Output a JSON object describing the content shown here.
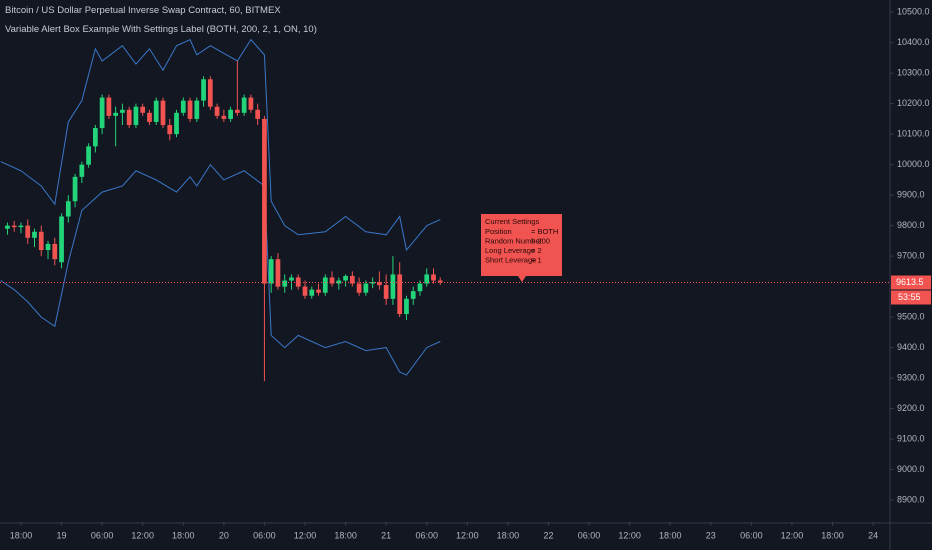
{
  "chart_data": {
    "type": "candlestick",
    "title": "Bitcoin / US Dollar Perpetual Inverse Swap Contract, 60, BITMEX",
    "subtitle": "Variable Alert Box Example With Settings Label (BOTH, 200, 2, 1, ON, 10)",
    "up_color": "#22d47a",
    "down_color": "#f05350",
    "grid": false,
    "xlim": [
      -9.1,
      122.5
    ],
    "ylim": [
      8828,
      10540
    ],
    "yticks": [
      {
        "value": 8900,
        "label": "8900.0"
      },
      {
        "value": 9000,
        "label": "9000.0"
      },
      {
        "value": 9100,
        "label": "9100.0"
      },
      {
        "value": 9200,
        "label": "9200.0"
      },
      {
        "value": 9300,
        "label": "9300.0"
      },
      {
        "value": 9400,
        "label": "9400.0"
      },
      {
        "value": 9500,
        "label": "9500.0"
      },
      {
        "value": 9600,
        "label": "9600.0"
      },
      {
        "value": 9700,
        "label": "9700.0"
      },
      {
        "value": 9800,
        "label": "9800.0"
      },
      {
        "value": 9900,
        "label": "9900.0"
      },
      {
        "value": 10000,
        "label": "10000.0"
      },
      {
        "value": 10100,
        "label": "10100.0"
      },
      {
        "value": 10200,
        "label": "10200.0"
      },
      {
        "value": 10300,
        "label": "10300.0"
      },
      {
        "value": 10400,
        "label": "10400.0"
      },
      {
        "value": 10500,
        "label": "10500.0"
      }
    ],
    "xticks": [
      {
        "value": -6,
        "label": "18:00"
      },
      {
        "value": 0,
        "label": "19"
      },
      {
        "value": 6,
        "label": "06:00"
      },
      {
        "value": 12,
        "label": "12:00"
      },
      {
        "value": 18,
        "label": "18:00"
      },
      {
        "value": 24,
        "label": "20"
      },
      {
        "value": 30,
        "label": "06:00"
      },
      {
        "value": 36,
        "label": "12:00"
      },
      {
        "value": 42,
        "label": "18:00"
      },
      {
        "value": 48,
        "label": "21"
      },
      {
        "value": 54,
        "label": "06:00"
      },
      {
        "value": 60,
        "label": "12:00"
      },
      {
        "value": 66,
        "label": "18:00"
      },
      {
        "value": 72,
        "label": "22"
      },
      {
        "value": 78,
        "label": "06:00"
      },
      {
        "value": 84,
        "label": "12:00"
      },
      {
        "value": 90,
        "label": "18:00"
      },
      {
        "value": 96,
        "label": "23"
      },
      {
        "value": 102,
        "label": "06:00"
      },
      {
        "value": 108,
        "label": "12:00"
      },
      {
        "value": 114,
        "label": "18:00"
      },
      {
        "value": 120,
        "label": "24"
      }
    ],
    "x": [
      -8,
      -7,
      -6,
      -5,
      -4,
      -3,
      -2,
      -1,
      0,
      1,
      2,
      3,
      4,
      5,
      6,
      7,
      8,
      9,
      10,
      11,
      12,
      13,
      14,
      15,
      16,
      17,
      18,
      19,
      20,
      21,
      22,
      23,
      24,
      25,
      26,
      27,
      28,
      29,
      30,
      31,
      32,
      33,
      34,
      35,
      36,
      37,
      38,
      39,
      40,
      41,
      42,
      43,
      44,
      45,
      46,
      47,
      48,
      49,
      50,
      51,
      52,
      53,
      54,
      55,
      56
    ],
    "open": [
      9790,
      9800,
      9795,
      9800,
      9760,
      9780,
      9720,
      9740,
      9680,
      9830,
      9880,
      9960,
      10000,
      10060,
      10120,
      10220,
      10160,
      10170,
      10180,
      10130,
      10190,
      10170,
      10140,
      10210,
      10130,
      10100,
      10170,
      10210,
      10150,
      10210,
      10280,
      10190,
      10160,
      10150,
      10180,
      10170,
      10220,
      10180,
      10150,
      9610,
      9690,
      9600,
      9620,
      9630,
      9600,
      9570,
      9590,
      9580,
      9630,
      9610,
      9620,
      9635,
      9610,
      9580,
      9610,
      9615,
      9605,
      9560,
      9640,
      9510,
      9560,
      9585,
      9610,
      9640,
      9620
    ],
    "high": [
      9810,
      9815,
      9810,
      9820,
      9790,
      9800,
      9750,
      9760,
      9840,
      9900,
      9970,
      10010,
      10070,
      10130,
      10230,
      10230,
      10190,
      10200,
      10190,
      10200,
      10200,
      10180,
      10220,
      10220,
      10150,
      10180,
      10220,
      10220,
      10220,
      10290,
      10290,
      10200,
      10180,
      10190,
      10340,
      10230,
      10230,
      10200,
      10160,
      9700,
      9710,
      9640,
      9640,
      9640,
      9620,
      9600,
      9610,
      9640,
      9650,
      9630,
      9640,
      9650,
      9630,
      9620,
      9630,
      9650,
      9640,
      9700,
      9680,
      9570,
      9600,
      9620,
      9660,
      9660,
      9630
    ],
    "low": [
      9770,
      9780,
      9775,
      9740,
      9730,
      9700,
      9690,
      9670,
      9660,
      9810,
      9860,
      9940,
      9990,
      10040,
      10100,
      10150,
      10060,
      10130,
      10120,
      10120,
      10160,
      10130,
      10130,
      10120,
      10080,
      10090,
      10160,
      10140,
      10140,
      10190,
      10180,
      10150,
      10140,
      10140,
      10160,
      10160,
      10170,
      10130,
      9290,
      9580,
      9590,
      9580,
      9590,
      9590,
      9560,
      9560,
      9570,
      9570,
      9600,
      9590,
      9600,
      9600,
      9570,
      9570,
      9595,
      9590,
      9540,
      9540,
      9500,
      9490,
      9540,
      9570,
      9600,
      9610,
      9605
    ],
    "close": [
      9800,
      9795,
      9800,
      9760,
      9780,
      9720,
      9740,
      9690,
      9830,
      9880,
      9960,
      10000,
      10060,
      10120,
      10220,
      10160,
      10170,
      10180,
      10130,
      10190,
      10170,
      10140,
      10210,
      10130,
      10100,
      10170,
      10210,
      10150,
      10210,
      10280,
      10190,
      10160,
      10150,
      10180,
      10170,
      10220,
      10180,
      10150,
      9610,
      9690,
      9600,
      9620,
      9630,
      9600,
      9570,
      9590,
      9580,
      9630,
      9610,
      9620,
      9635,
      9610,
      9580,
      9610,
      9615,
      9605,
      9560,
      9640,
      9510,
      9560,
      9585,
      9610,
      9640,
      9620,
      9613.5
    ],
    "bands": [
      {
        "color": "#3a78c9",
        "x": [
          -9,
          -6,
          -3,
          -1,
          1,
          3,
          5,
          6,
          9,
          11,
          13,
          15,
          17,
          19,
          20,
          22,
          26,
          28,
          30,
          31,
          33,
          35,
          39,
          42,
          45,
          48,
          50,
          51,
          54,
          56
        ],
        "values": [
          10010,
          9980,
          9930,
          9870,
          10140,
          10210,
          10380,
          10340,
          10390,
          10330,
          10380,
          10310,
          10390,
          10410,
          10360,
          10390,
          10340,
          10410,
          10360,
          9880,
          9800,
          9770,
          9780,
          9830,
          9780,
          9770,
          9830,
          9720,
          9800,
          9820
        ]
      },
      {
        "color": "#3a78c9",
        "x": [
          -9,
          -7,
          -5,
          -3,
          -1,
          1,
          3,
          6,
          9,
          11,
          14,
          17,
          19,
          20,
          22,
          24,
          27,
          30,
          31,
          33,
          35,
          39,
          42,
          45,
          48,
          50,
          51,
          54,
          56
        ],
        "values": [
          9620,
          9590,
          9550,
          9500,
          9470,
          9680,
          9850,
          9910,
          9930,
          9980,
          9950,
          9910,
          9960,
          9930,
          10000,
          9950,
          9980,
          9930,
          9440,
          9400,
          9440,
          9400,
          9420,
          9390,
          9400,
          9320,
          9310,
          9400,
          9420
        ]
      }
    ],
    "last_price": 9613.5,
    "countdown": "53:55",
    "settings_label": {
      "title": "Current Settings",
      "color": "#f05350",
      "rows": [
        [
          "Position",
          "= BOTH"
        ],
        [
          "Random Number",
          "= 200"
        ],
        [
          "Long Leverage",
          "= 2"
        ],
        [
          "Short Leverage",
          "= 1"
        ]
      ]
    }
  }
}
